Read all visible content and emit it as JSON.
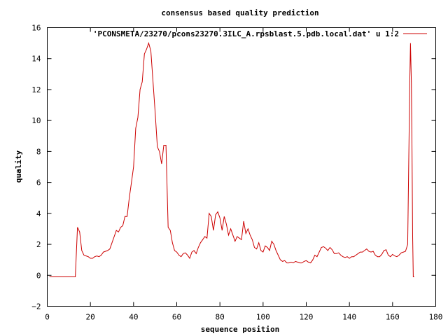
{
  "chart_data": {
    "type": "line",
    "title": "consensus based quality prediction",
    "xlabel": "sequence position",
    "ylabel": "quality",
    "xlim": [
      0,
      180
    ],
    "ylim": [
      -2,
      16
    ],
    "xticks": [
      0,
      20,
      40,
      60,
      80,
      100,
      120,
      140,
      160,
      180
    ],
    "yticks": [
      -2,
      0,
      2,
      4,
      6,
      8,
      10,
      12,
      14,
      16
    ],
    "legend_position": "top-right",
    "grid": false,
    "series": [
      {
        "name": "'PCONSMETA/23270/pcons23270.3ILC_A.rpsblast.5.pdb.local.dat' u 1:2",
        "color": "#cc0000",
        "points": [
          [
            1,
            -0.1
          ],
          [
            5,
            -0.1
          ],
          [
            10,
            -0.1
          ],
          [
            13,
            -0.1
          ],
          [
            14,
            3.1
          ],
          [
            15,
            2.8
          ],
          [
            16,
            1.6
          ],
          [
            17,
            1.3
          ],
          [
            18,
            1.25
          ],
          [
            19,
            1.2
          ],
          [
            20,
            1.1
          ],
          [
            21,
            1.1
          ],
          [
            22,
            1.2
          ],
          [
            23,
            1.25
          ],
          [
            24,
            1.2
          ],
          [
            25,
            1.3
          ],
          [
            26,
            1.5
          ],
          [
            27,
            1.55
          ],
          [
            28,
            1.6
          ],
          [
            29,
            1.7
          ],
          [
            30,
            2.1
          ],
          [
            31,
            2.5
          ],
          [
            32,
            2.9
          ],
          [
            33,
            2.8
          ],
          [
            34,
            3.1
          ],
          [
            35,
            3.2
          ],
          [
            36,
            3.8
          ],
          [
            37,
            3.8
          ],
          [
            38,
            5.0
          ],
          [
            39,
            6.0
          ],
          [
            40,
            7.0
          ],
          [
            41,
            9.5
          ],
          [
            42,
            10.2
          ],
          [
            43,
            12.0
          ],
          [
            44,
            12.5
          ],
          [
            45,
            14.3
          ],
          [
            46,
            14.6
          ],
          [
            47,
            15.0
          ],
          [
            48,
            14.5
          ],
          [
            49,
            12.5
          ],
          [
            50,
            10.5
          ],
          [
            51,
            8.3
          ],
          [
            52,
            8.0
          ],
          [
            53,
            7.2
          ],
          [
            54,
            8.4
          ],
          [
            55,
            8.4
          ],
          [
            56,
            3.1
          ],
          [
            57,
            2.9
          ],
          [
            58,
            2.1
          ],
          [
            59,
            1.6
          ],
          [
            60,
            1.5
          ],
          [
            61,
            1.3
          ],
          [
            62,
            1.2
          ],
          [
            63,
            1.4
          ],
          [
            64,
            1.45
          ],
          [
            65,
            1.3
          ],
          [
            66,
            1.1
          ],
          [
            67,
            1.5
          ],
          [
            68,
            1.6
          ],
          [
            69,
            1.4
          ],
          [
            70,
            1.8
          ],
          [
            71,
            2.1
          ],
          [
            72,
            2.3
          ],
          [
            73,
            2.5
          ],
          [
            74,
            2.4
          ],
          [
            75,
            4.0
          ],
          [
            76,
            3.8
          ],
          [
            77,
            2.9
          ],
          [
            78,
            3.9
          ],
          [
            79,
            4.1
          ],
          [
            80,
            3.7
          ],
          [
            81,
            2.9
          ],
          [
            82,
            3.8
          ],
          [
            83,
            3.3
          ],
          [
            84,
            2.6
          ],
          [
            85,
            3.0
          ],
          [
            86,
            2.6
          ],
          [
            87,
            2.2
          ],
          [
            88,
            2.5
          ],
          [
            89,
            2.4
          ],
          [
            90,
            2.3
          ],
          [
            91,
            3.5
          ],
          [
            92,
            2.7
          ],
          [
            93,
            3.0
          ],
          [
            94,
            2.6
          ],
          [
            95,
            2.3
          ],
          [
            96,
            1.8
          ],
          [
            97,
            1.7
          ],
          [
            98,
            2.1
          ],
          [
            99,
            1.6
          ],
          [
            100,
            1.5
          ],
          [
            101,
            1.9
          ],
          [
            102,
            1.8
          ],
          [
            103,
            1.6
          ],
          [
            104,
            2.2
          ],
          [
            105,
            2.0
          ],
          [
            106,
            1.6
          ],
          [
            107,
            1.3
          ],
          [
            108,
            1.0
          ],
          [
            109,
            0.9
          ],
          [
            110,
            0.95
          ],
          [
            111,
            0.8
          ],
          [
            112,
            0.8
          ],
          [
            113,
            0.85
          ],
          [
            114,
            0.8
          ],
          [
            115,
            0.9
          ],
          [
            116,
            0.85
          ],
          [
            117,
            0.8
          ],
          [
            118,
            0.8
          ],
          [
            119,
            0.9
          ],
          [
            120,
            0.95
          ],
          [
            121,
            0.85
          ],
          [
            122,
            0.8
          ],
          [
            123,
            1.0
          ],
          [
            124,
            1.3
          ],
          [
            125,
            1.2
          ],
          [
            126,
            1.5
          ],
          [
            127,
            1.8
          ],
          [
            128,
            1.85
          ],
          [
            129,
            1.75
          ],
          [
            130,
            1.6
          ],
          [
            131,
            1.8
          ],
          [
            132,
            1.65
          ],
          [
            133,
            1.4
          ],
          [
            134,
            1.4
          ],
          [
            135,
            1.45
          ],
          [
            136,
            1.3
          ],
          [
            137,
            1.2
          ],
          [
            138,
            1.15
          ],
          [
            139,
            1.2
          ],
          [
            140,
            1.1
          ],
          [
            141,
            1.2
          ],
          [
            142,
            1.2
          ],
          [
            143,
            1.3
          ],
          [
            144,
            1.4
          ],
          [
            145,
            1.5
          ],
          [
            146,
            1.5
          ],
          [
            147,
            1.6
          ],
          [
            148,
            1.7
          ],
          [
            149,
            1.55
          ],
          [
            150,
            1.5
          ],
          [
            151,
            1.55
          ],
          [
            152,
            1.3
          ],
          [
            153,
            1.2
          ],
          [
            154,
            1.2
          ],
          [
            155,
            1.35
          ],
          [
            156,
            1.6
          ],
          [
            157,
            1.65
          ],
          [
            158,
            1.3
          ],
          [
            159,
            1.2
          ],
          [
            160,
            1.35
          ],
          [
            161,
            1.25
          ],
          [
            162,
            1.2
          ],
          [
            163,
            1.3
          ],
          [
            164,
            1.45
          ],
          [
            165,
            1.5
          ],
          [
            166,
            1.55
          ],
          [
            167,
            2.0
          ],
          [
            168,
            12.8
          ],
          [
            168.3,
            15.0
          ],
          [
            168.7,
            12.4
          ],
          [
            169,
            8.0
          ],
          [
            169.3,
            2.5
          ],
          [
            169.6,
            -0.1
          ],
          [
            170,
            -0.1
          ]
        ]
      }
    ]
  }
}
